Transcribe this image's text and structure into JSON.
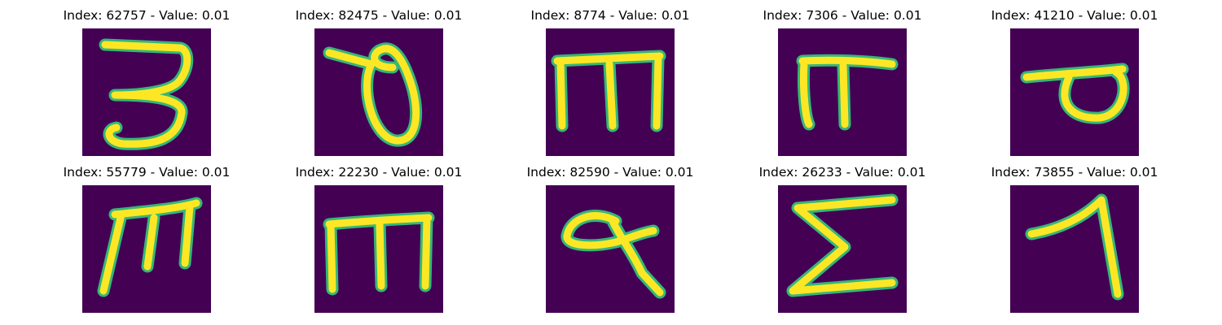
{
  "colormap": {
    "background": "#440154",
    "edge": "#35b779",
    "stroke": "#fde725"
  },
  "panels": [
    {
      "title": "Index: 62757 - Value: 0.01",
      "glyph": "letter-3-like"
    },
    {
      "title": "Index: 82475 - Value: 0.01",
      "glyph": "theta-loop"
    },
    {
      "title": "Index: 8774 - Value: 0.01",
      "glyph": "m-shape"
    },
    {
      "title": "Index: 7306 - Value: 0.01",
      "glyph": "pi-shape"
    },
    {
      "title": "Index: 41210 - Value: 0.01",
      "glyph": "sigma-loop"
    },
    {
      "title": "Index: 55779 - Value: 0.01",
      "glyph": "m-slanted"
    },
    {
      "title": "Index: 22230 - Value: 0.01",
      "glyph": "m-shape"
    },
    {
      "title": "Index: 82590 - Value: 0.01",
      "glyph": "a-loop-tail"
    },
    {
      "title": "Index: 26233 - Value: 0.01",
      "glyph": "sigma"
    },
    {
      "title": "Index: 73855 - Value: 0.01",
      "glyph": "one-shape"
    }
  ]
}
